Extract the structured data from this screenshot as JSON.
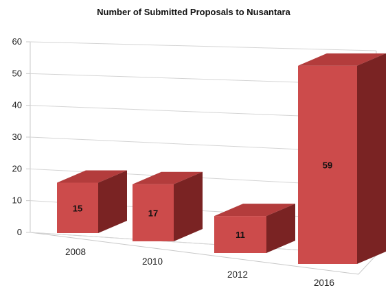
{
  "chart_data": {
    "type": "bar",
    "title": "Number of Submitted Proposals to Nusantara",
    "categories": [
      "2008",
      "2010",
      "2012",
      "2016"
    ],
    "values": [
      15,
      17,
      11,
      59
    ],
    "data_labels": [
      "15",
      "17",
      "11",
      "59"
    ],
    "yticks": [
      "0",
      "10",
      "20",
      "30",
      "40",
      "50",
      "60"
    ],
    "ylim": [
      0,
      60
    ],
    "grid": true,
    "style": "3d-column",
    "colors": {
      "front": "#cc4b4b",
      "top": "#b33c3c",
      "side": "#7a2323"
    }
  }
}
